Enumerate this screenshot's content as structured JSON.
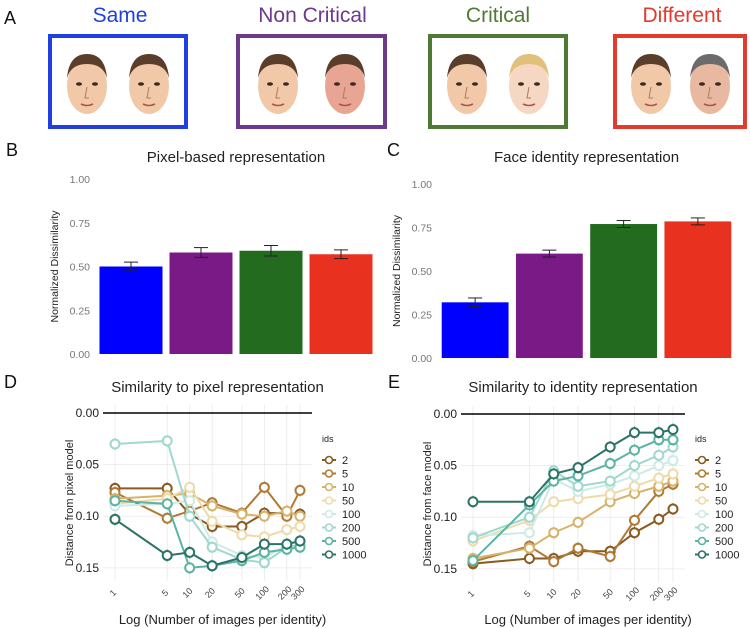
{
  "panel_letters": {
    "a": "A",
    "b": "B",
    "c": "C",
    "d": "D",
    "e": "E"
  },
  "conditions": [
    {
      "label": "Same",
      "color": "#1f3fe0"
    },
    {
      "label": "Non Critical",
      "color": "#6c3a8c"
    },
    {
      "label": "Critical",
      "color": "#4e7a32"
    },
    {
      "label": "Different",
      "color": "#e23a2c"
    }
  ],
  "series_colors": {
    "2": "#8a5a20",
    "5": "#b07a34",
    "10": "#d7b26a",
    "50": "#eedbaa",
    "100": "#cfeae4",
    "200": "#9ed8cf",
    "500": "#5bb3a4",
    "1000": "#2b7366"
  },
  "chart_data": [
    {
      "type": "bar",
      "title": "Pixel-based representation",
      "ylabel": "Normalized Dissimilarity",
      "categories": [
        "Same",
        "Non Critical",
        "Critical",
        "Different"
      ],
      "values": [
        0.5,
        0.58,
        0.59,
        0.57
      ],
      "errors": [
        0.025,
        0.028,
        0.03,
        0.025
      ],
      "colors": [
        "#0000ff",
        "#7a1a86",
        "#236b1e",
        "#e8311f"
      ],
      "ylim": [
        0,
        1
      ],
      "yticks": [
        "0.00",
        "0.25",
        "0.50",
        "0.75",
        "1.00"
      ]
    },
    {
      "type": "bar",
      "title": "Face identity representation",
      "ylabel": "Normalized Dissimilarity",
      "categories": [
        "Same",
        "Non Critical",
        "Critical",
        "Different"
      ],
      "values": [
        0.32,
        0.6,
        0.77,
        0.785
      ],
      "errors": [
        0.025,
        0.02,
        0.02,
        0.02
      ],
      "colors": [
        "#0000ff",
        "#7a1a86",
        "#236b1e",
        "#e8311f"
      ],
      "ylim": [
        0,
        1
      ],
      "yticks": [
        "0.00",
        "0.25",
        "0.50",
        "0.75",
        "1.00"
      ]
    },
    {
      "type": "line",
      "title": "Similarity to pixel representation",
      "xlabel": "Log (Number of images per identity)",
      "ylabel": "Distance from pixel model",
      "legend_title": "ids",
      "x": [
        1,
        5,
        10,
        20,
        50,
        100,
        200,
        300
      ],
      "xticks": [
        "1",
        "5",
        "10",
        "20",
        "50",
        "100",
        "200",
        "300"
      ],
      "yticks": [
        "0.00",
        "0.05",
        "0.10",
        "0.15"
      ],
      "ylim": [
        0,
        0.155
      ],
      "series": [
        {
          "name": "2",
          "values": [
            0.073,
            0.073,
            0.098,
            0.11,
            0.11,
            0.097,
            0.097,
            0.098
          ]
        },
        {
          "name": "5",
          "values": [
            0.077,
            0.102,
            0.095,
            0.087,
            0.097,
            0.072,
            0.1,
            0.075
          ]
        },
        {
          "name": "10",
          "values": [
            0.083,
            0.08,
            0.078,
            0.09,
            0.098,
            0.1,
            0.095,
            0.1
          ]
        },
        {
          "name": "50",
          "values": [
            0.088,
            0.083,
            0.072,
            0.105,
            0.118,
            0.12,
            0.113,
            0.11
          ]
        },
        {
          "name": "100",
          "values": [
            0.09,
            0.088,
            0.085,
            0.125,
            0.138,
            0.14,
            0.128,
            0.124
          ]
        },
        {
          "name": "200",
          "values": [
            0.03,
            0.027,
            0.1,
            0.13,
            0.142,
            0.145,
            0.13,
            0.128
          ]
        },
        {
          "name": "500",
          "values": [
            0.085,
            0.088,
            0.15,
            0.148,
            0.143,
            0.135,
            0.132,
            0.13
          ]
        },
        {
          "name": "1000",
          "values": [
            0.103,
            0.138,
            0.135,
            0.148,
            0.14,
            0.127,
            0.127,
            0.124
          ]
        }
      ]
    },
    {
      "type": "line",
      "title": "Similarity to identity representation",
      "xlabel": "Log (Number of images per identity)",
      "ylabel": "Distance from face model",
      "legend_title": "ids",
      "x": [
        1,
        5,
        10,
        20,
        50,
        100,
        200,
        300
      ],
      "xticks": [
        "1",
        "5",
        "10",
        "20",
        "50",
        "100",
        "200",
        "300"
      ],
      "yticks": [
        "0.00",
        "0.05",
        "0.10",
        "0.15"
      ],
      "ylim": [
        0,
        0.155
      ],
      "series": [
        {
          "name": "2",
          "values": [
            0.145,
            0.14,
            0.14,
            0.133,
            0.133,
            0.115,
            0.102,
            0.092
          ]
        },
        {
          "name": "5",
          "values": [
            0.143,
            0.128,
            0.143,
            0.13,
            0.138,
            0.103,
            0.075,
            0.068
          ]
        },
        {
          "name": "10",
          "values": [
            0.14,
            0.13,
            0.115,
            0.105,
            0.085,
            0.077,
            0.07,
            0.065
          ]
        },
        {
          "name": "50",
          "values": [
            0.123,
            0.103,
            0.085,
            0.082,
            0.078,
            0.07,
            0.062,
            0.058
          ]
        },
        {
          "name": "100",
          "values": [
            0.118,
            0.115,
            0.063,
            0.075,
            0.068,
            0.06,
            0.05,
            0.045
          ]
        },
        {
          "name": "200",
          "values": [
            0.12,
            0.1,
            0.055,
            0.07,
            0.065,
            0.05,
            0.04,
            0.032
          ]
        },
        {
          "name": "500",
          "values": [
            0.142,
            0.088,
            0.065,
            0.06,
            0.048,
            0.035,
            0.025,
            0.025
          ]
        },
        {
          "name": "1000",
          "values": [
            0.085,
            0.085,
            0.058,
            0.052,
            0.032,
            0.018,
            0.018,
            0.015
          ]
        }
      ]
    }
  ]
}
